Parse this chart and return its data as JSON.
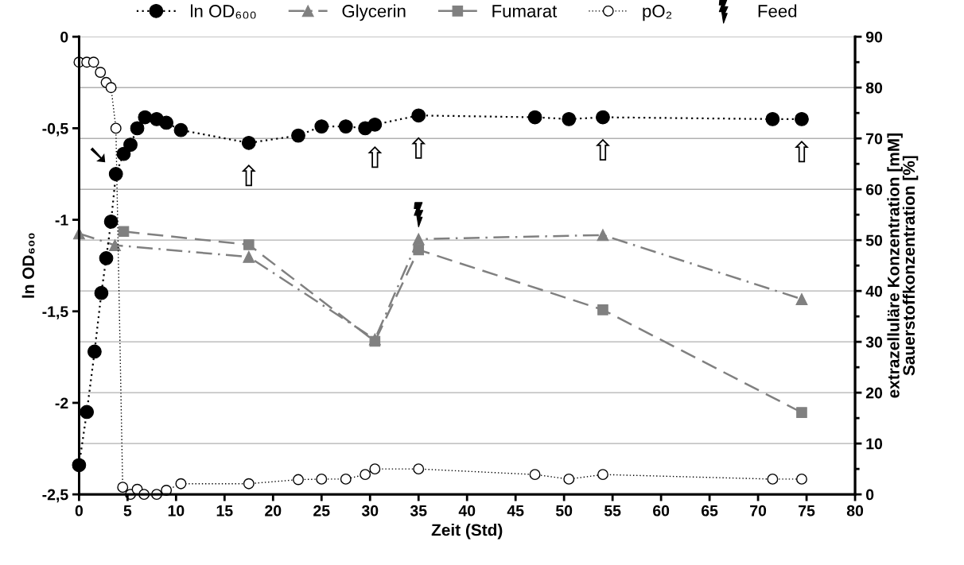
{
  "chart_data": {
    "type": "line",
    "xlabel": "Zeit (Std)",
    "ylabel": "ln OD₆₀₀",
    "y2label": "extrazelluläre Konzentration [mM]\nSauerstoffkonzentration [%]",
    "xlim": [
      0,
      80
    ],
    "xticks": [
      0,
      5,
      10,
      15,
      20,
      25,
      30,
      35,
      40,
      45,
      50,
      55,
      60,
      65,
      70,
      75,
      80
    ],
    "ylim": [
      -2.5,
      0
    ],
    "yticks": [
      {
        "value": -2.5,
        "label": "-2,5"
      },
      {
        "value": -2,
        "label": "-2"
      },
      {
        "value": -1.5,
        "label": "-1,5"
      },
      {
        "value": -1,
        "label": "-1"
      },
      {
        "value": -0.5,
        "label": "-0,5"
      },
      0
    ],
    "y2lim": [
      0,
      90
    ],
    "y2ticks": [
      0,
      {
        "value": 5,
        "label": null
      },
      10,
      {
        "value": 15,
        "label": null
      },
      20,
      {
        "value": 25,
        "label": null
      },
      30,
      {
        "value": 35,
        "label": null
      },
      40,
      {
        "value": 45,
        "label": null
      },
      50,
      {
        "value": 55,
        "label": null
      },
      60,
      {
        "value": 65,
        "label": null
      },
      70,
      {
        "value": 75,
        "label": null
      },
      80,
      {
        "value": 85,
        "label": null
      },
      90
    ],
    "grid": "y2",
    "legend": "top",
    "series": [
      {
        "name": "ln OD₆₀₀",
        "color": "#000000",
        "marker": "circle",
        "line_style": "dotted",
        "x": [
          0,
          0.8,
          1.6,
          2.3,
          2.8,
          3.3,
          3.8,
          4.6,
          5.3,
          6.0,
          6.8,
          8.0,
          9.0,
          10.5,
          17.5,
          22.6,
          25,
          27.5,
          29.5,
          30.5,
          35,
          47,
          50.5,
          54,
          71.5,
          74.5
        ],
        "values": [
          -2.34,
          -2.05,
          -1.72,
          -1.4,
          -1.21,
          -1.01,
          -0.75,
          -0.64,
          -0.59,
          -0.5,
          -0.44,
          -0.45,
          -0.47,
          -0.51,
          -0.58,
          -0.54,
          -0.49,
          -0.49,
          -0.5,
          -0.48,
          -0.43,
          -0.44,
          -0.45,
          -0.44,
          -0.45,
          -0.45
        ]
      },
      {
        "name": "Glycerin",
        "color": "#808080",
        "marker": "triangle",
        "line_style": "dashdot",
        "axis": "y2",
        "x": [
          0,
          3.7,
          17.5,
          30.5,
          35,
          54,
          74.5
        ],
        "values": [
          51.3,
          49.0,
          46.7,
          30.5,
          50.2,
          51.0,
          38.4
        ]
      },
      {
        "name": "Fumarat",
        "color": "#808080",
        "marker": "square",
        "line_style": "dashed",
        "axis": "y2",
        "x": [
          4.6,
          17.5,
          30.5,
          35,
          54,
          74.5
        ],
        "values": [
          51.7,
          49.1,
          30.1,
          48.1,
          36.3,
          16.1
        ]
      },
      {
        "name": "pO₂",
        "color": "#ffffff",
        "marker": "circle",
        "line_style": "dotted",
        "axis": "y2",
        "x": [
          0,
          0.8,
          1.5,
          2.2,
          2.8,
          3.3,
          3.8,
          4.5,
          5.3,
          6.0,
          6.7,
          8.0,
          9.0,
          10.5,
          17.5,
          22.6,
          25,
          27.5,
          29.5,
          30.5,
          35,
          47,
          50.5,
          54,
          71.5,
          74.5
        ],
        "values": [
          85,
          85,
          85,
          83,
          81,
          80,
          72,
          1.4,
          0,
          1,
          0,
          0,
          0.8,
          2.1,
          2.1,
          2.9,
          3,
          3,
          3.9,
          5,
          5,
          3.9,
          3,
          3.9,
          3,
          3
        ]
      },
      {
        "name": "Feed",
        "type": "scatter",
        "color": "#000000",
        "axis": "y2",
        "x": [
          35
        ],
        "values": [
          55
        ]
      }
    ],
    "annotations": [
      {
        "text": "⇧",
        "x": 17.5,
        "y": -0.58
      },
      {
        "text": "⇧",
        "x": 30.5,
        "y": -0.48
      },
      {
        "text": "⇧",
        "x": 35,
        "y": -0.43
      },
      {
        "text": "⇧",
        "x": 54,
        "y": -0.44
      },
      {
        "text": "⇧",
        "x": 74.5,
        "y": -0.45
      },
      {
        "text": "➘",
        "x": 3.8,
        "y": -0.75
      }
    ]
  }
}
